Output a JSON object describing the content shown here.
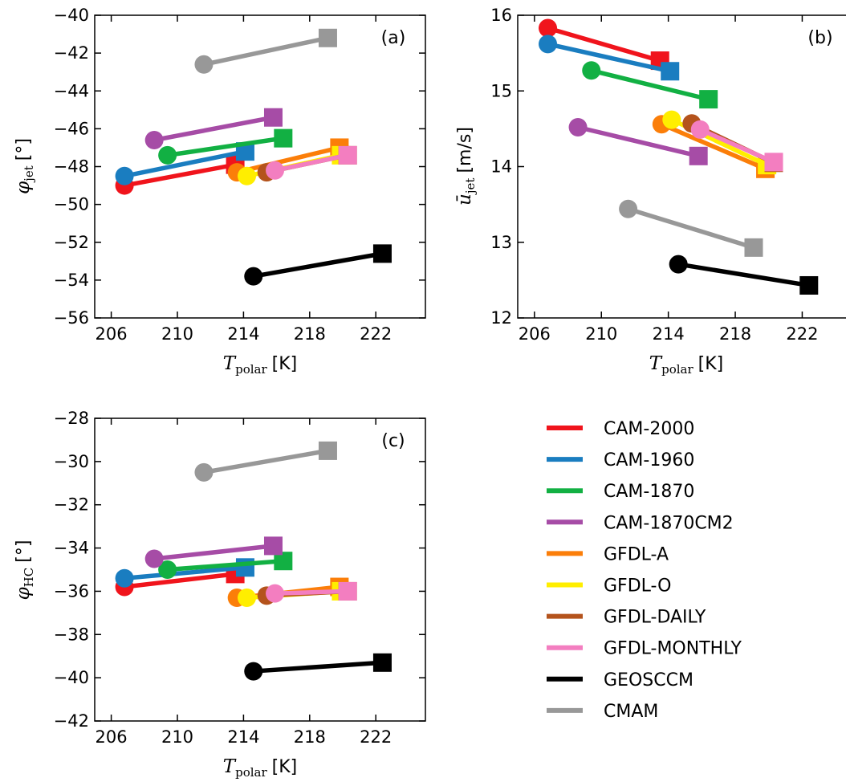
{
  "colors": {
    "CAM-2000": "#f0141c",
    "CAM-1960": "#1a7dc0",
    "CAM-1870": "#12b043",
    "CAM-1870CM2": "#a64ca6",
    "GFDL-A": "#fb7e09",
    "GFDL-O": "#ffee00",
    "GFDL-DAILY": "#b4531c",
    "GFDL-MONTHLY": "#f37ec0",
    "GEOSCCM": "#000000",
    "CMAM": "#989898"
  },
  "legend": [
    "CAM-2000",
    "CAM-1960",
    "CAM-1870",
    "CAM-1870CM2",
    "GFDL-A",
    "GFDL-O",
    "GFDL-DAILY",
    "GFDL-MONTHLY",
    "GEOSCCM",
    "CMAM"
  ],
  "chart_data": [
    {
      "type": "line",
      "panel": "(a)",
      "ylabel_symbol": "φ",
      "ylabel_sub": "jet",
      "ylabel_unit": "[°]",
      "xlabel_symbol": "T",
      "xlabel_sub": "polar",
      "xlabel_unit": "[K]",
      "xlim": [
        205,
        225
      ],
      "ylim": [
        -56,
        -40
      ],
      "xticks": [
        206,
        210,
        214,
        218,
        222
      ],
      "xtick_labels": [
        "206",
        "210",
        "214",
        "218",
        "222"
      ],
      "yticks": [
        -56,
        -54,
        -52,
        -50,
        -48,
        -46,
        -44,
        -42,
        -40
      ],
      "ytick_labels": [
        "−56",
        "−54",
        "−52",
        "−50",
        "−48",
        "−46",
        "−44",
        "−42",
        "−40"
      ],
      "series": [
        {
          "name": "CAM-2000",
          "x": [
            206.8,
            213.5
          ],
          "y": [
            -49.0,
            -47.9
          ]
        },
        {
          "name": "CAM-1960",
          "x": [
            206.8,
            214.1
          ],
          "y": [
            -48.5,
            -47.2
          ]
        },
        {
          "name": "CAM-1870",
          "x": [
            209.4,
            216.4
          ],
          "y": [
            -47.4,
            -46.5
          ]
        },
        {
          "name": "CAM-1870CM2",
          "x": [
            208.6,
            215.8
          ],
          "y": [
            -46.6,
            -45.4
          ]
        },
        {
          "name": "GFDL-A",
          "x": [
            213.6,
            219.8
          ],
          "y": [
            -48.3,
            -47.0
          ]
        },
        {
          "name": "GFDL-O",
          "x": [
            214.2,
            219.9
          ],
          "y": [
            -48.5,
            -47.4
          ]
        },
        {
          "name": "GFDL-DAILY",
          "x": [
            215.4,
            220.3
          ],
          "y": [
            -48.3,
            -47.4
          ]
        },
        {
          "name": "GFDL-MONTHLY",
          "x": [
            215.9,
            220.3
          ],
          "y": [
            -48.2,
            -47.4
          ]
        },
        {
          "name": "GEOSCCM",
          "x": [
            214.6,
            222.4
          ],
          "y": [
            -53.8,
            -52.6
          ]
        },
        {
          "name": "CMAM",
          "x": [
            211.6,
            219.1
          ],
          "y": [
            -42.6,
            -41.2
          ]
        }
      ]
    },
    {
      "type": "line",
      "panel": "(b)",
      "ylabel_symbol": "ū",
      "ylabel_sub": "jet",
      "ylabel_unit": "[m/s]",
      "xlabel_symbol": "T",
      "xlabel_sub": "polar",
      "xlabel_unit": "[K]",
      "xlim": [
        205,
        225
      ],
      "ylim": [
        12,
        16
      ],
      "xticks": [
        206,
        210,
        214,
        218,
        222
      ],
      "xtick_labels": [
        "206",
        "210",
        "214",
        "218",
        "222"
      ],
      "yticks": [
        12,
        13,
        14,
        15,
        16
      ],
      "ytick_labels": [
        "12",
        "13",
        "14",
        "15",
        "16"
      ],
      "series": [
        {
          "name": "CAM-2000",
          "x": [
            206.8,
            213.5
          ],
          "y": [
            15.83,
            15.4
          ]
        },
        {
          "name": "CAM-1960",
          "x": [
            206.8,
            214.1
          ],
          "y": [
            15.62,
            15.26
          ]
        },
        {
          "name": "CAM-1870",
          "x": [
            209.4,
            216.4
          ],
          "y": [
            15.27,
            14.89
          ]
        },
        {
          "name": "CAM-1870CM2",
          "x": [
            208.6,
            215.8
          ],
          "y": [
            14.52,
            14.14
          ]
        },
        {
          "name": "GFDL-A",
          "x": [
            213.6,
            219.8
          ],
          "y": [
            14.56,
            13.97
          ]
        },
        {
          "name": "GFDL-O",
          "x": [
            214.2,
            219.9
          ],
          "y": [
            14.62,
            14.02
          ]
        },
        {
          "name": "GFDL-DAILY",
          "x": [
            215.4,
            220.3
          ],
          "y": [
            14.57,
            14.05
          ]
        },
        {
          "name": "GFDL-MONTHLY",
          "x": [
            215.9,
            220.3
          ],
          "y": [
            14.49,
            14.06
          ]
        },
        {
          "name": "GEOSCCM",
          "x": [
            214.6,
            222.4
          ],
          "y": [
            12.71,
            12.43
          ]
        },
        {
          "name": "CMAM",
          "x": [
            211.6,
            219.1
          ],
          "y": [
            13.44,
            12.93
          ]
        }
      ]
    },
    {
      "type": "line",
      "panel": "(c)",
      "ylabel_symbol": "φ",
      "ylabel_sub": "HC",
      "ylabel_unit": "[°]",
      "xlabel_symbol": "T",
      "xlabel_sub": "polar",
      "xlabel_unit": "[K]",
      "xlim": [
        205,
        225
      ],
      "ylim": [
        -42,
        -28
      ],
      "xticks": [
        206,
        210,
        214,
        218,
        222
      ],
      "xtick_labels": [
        "206",
        "210",
        "214",
        "218",
        "222"
      ],
      "yticks": [
        -42,
        -40,
        -38,
        -36,
        -34,
        -32,
        -30,
        -28
      ],
      "ytick_labels": [
        "−42",
        "−40",
        "−38",
        "−36",
        "−34",
        "−32",
        "−30",
        "−28"
      ],
      "series": [
        {
          "name": "CAM-2000",
          "x": [
            206.8,
            213.5
          ],
          "y": [
            -35.8,
            -35.2
          ]
        },
        {
          "name": "CAM-1960",
          "x": [
            206.8,
            214.1
          ],
          "y": [
            -35.4,
            -34.9
          ]
        },
        {
          "name": "CAM-1870",
          "x": [
            209.4,
            216.4
          ],
          "y": [
            -35.0,
            -34.6
          ]
        },
        {
          "name": "CAM-1870CM2",
          "x": [
            208.6,
            215.8
          ],
          "y": [
            -34.5,
            -33.9
          ]
        },
        {
          "name": "GFDL-A",
          "x": [
            213.6,
            219.8
          ],
          "y": [
            -36.3,
            -35.8
          ]
        },
        {
          "name": "GFDL-O",
          "x": [
            214.2,
            219.9
          ],
          "y": [
            -36.3,
            -36.0
          ]
        },
        {
          "name": "GFDL-DAILY",
          "x": [
            215.4,
            220.3
          ],
          "y": [
            -36.2,
            -36.0
          ]
        },
        {
          "name": "GFDL-MONTHLY",
          "x": [
            215.9,
            220.3
          ],
          "y": [
            -36.1,
            -36.0
          ]
        },
        {
          "name": "GEOSCCM",
          "x": [
            214.6,
            222.4
          ],
          "y": [
            -39.7,
            -39.3
          ]
        },
        {
          "name": "CMAM",
          "x": [
            211.6,
            219.1
          ],
          "y": [
            -30.5,
            -29.5
          ]
        }
      ]
    }
  ]
}
